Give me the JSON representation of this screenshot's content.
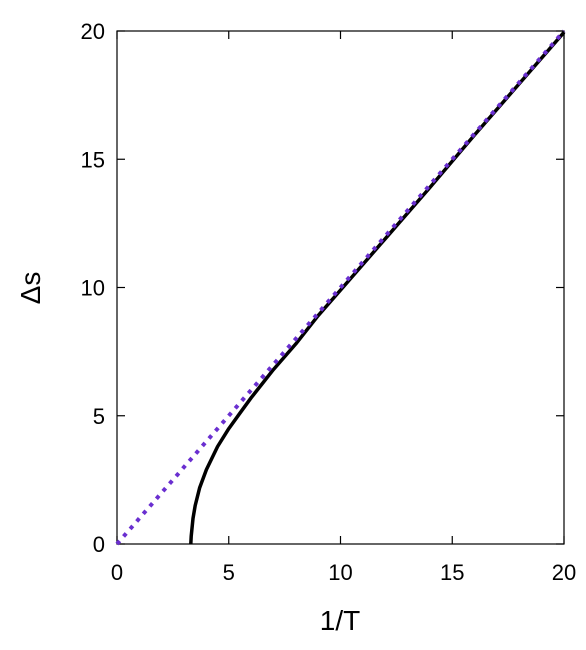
{
  "chart_data": {
    "type": "line",
    "title": "",
    "xlabel": "1/T",
    "ylabel": "Δs",
    "xlim": [
      0,
      20
    ],
    "ylim": [
      0,
      20
    ],
    "xticks": [
      "0",
      "5",
      "10",
      "15",
      "20"
    ],
    "yticks": [
      "0",
      "5",
      "10",
      "15",
      "20"
    ],
    "grid": false,
    "legend": "none",
    "series": [
      {
        "style": "solid",
        "color": "#000000",
        "x": [
          3.3,
          3.32,
          3.4,
          3.5,
          3.7,
          4.0,
          4.5,
          5.0,
          5.5,
          6.0,
          7.0,
          8.0,
          9.0,
          10.0,
          12.0,
          14.0,
          16.0,
          18.0,
          20.0
        ],
        "y": [
          0.0,
          0.3,
          1.0,
          1.5,
          2.2,
          2.9,
          3.8,
          4.5,
          5.1,
          5.7,
          6.8,
          7.8,
          8.9,
          9.9,
          11.9,
          13.9,
          15.95,
          17.95,
          19.95
        ]
      },
      {
        "style": "dotted",
        "color": "#6a2fd0",
        "x": [
          0,
          20
        ],
        "y": [
          0,
          20
        ]
      }
    ]
  }
}
